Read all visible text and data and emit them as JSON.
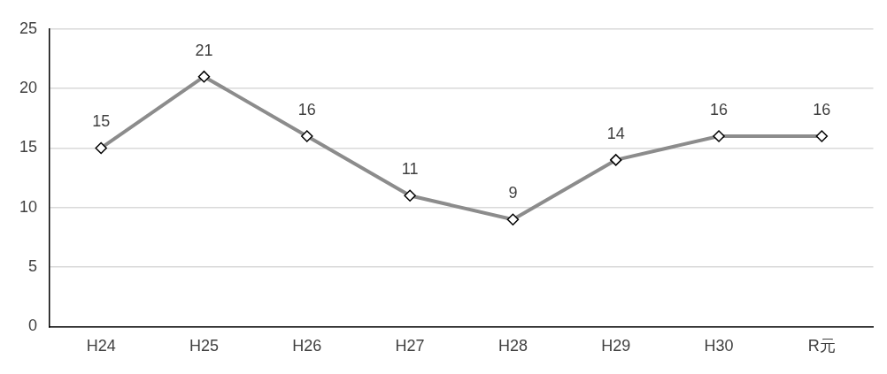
{
  "chart_data": {
    "type": "line",
    "categories": [
      "H24",
      "H25",
      "H26",
      "H27",
      "H28",
      "H29",
      "H30",
      "R元"
    ],
    "series": [
      {
        "color": "#8c8c8c",
        "values": [
          15,
          21,
          16,
          11,
          9,
          14,
          16,
          16
        ]
      }
    ],
    "ylim": [
      0,
      25
    ],
    "yticks": [
      0,
      5,
      10,
      15,
      20,
      25
    ],
    "grid": "y",
    "legend": false,
    "marker": "diamond",
    "line_style": "solid",
    "data_labels": true
  }
}
